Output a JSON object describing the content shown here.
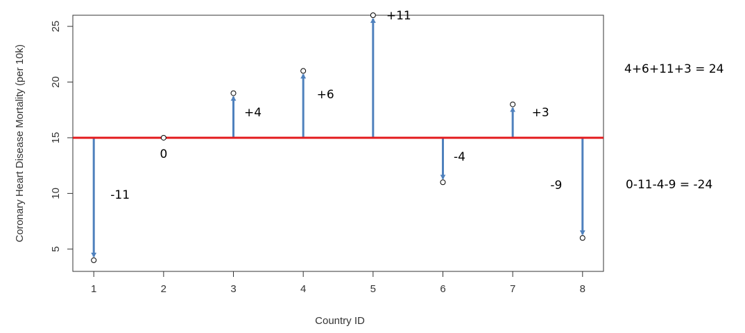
{
  "chart_data": {
    "type": "scatter",
    "xlabel": "Country ID",
    "ylabel": "Coronary Heart Disease Mortality (per 10k)",
    "x": [
      1,
      2,
      3,
      4,
      5,
      6,
      7,
      8
    ],
    "y": [
      4,
      15,
      19,
      21,
      26,
      11,
      18,
      6
    ],
    "baseline": 15,
    "xlim": [
      0.7,
      8.3
    ],
    "ylim": [
      3,
      26
    ],
    "xticks": [
      "1",
      "2",
      "3",
      "4",
      "5",
      "6",
      "7",
      "8"
    ],
    "yticks": [
      "5",
      "10",
      "15",
      "20",
      "25"
    ],
    "deviation_labels": [
      "-11",
      "0",
      "+4",
      "+6",
      "+11",
      "-4",
      "+3",
      "-9"
    ],
    "grid": false,
    "colors": {
      "baseline": "#e31a1c",
      "arrow": "#4f81bd",
      "point": "#000000"
    }
  },
  "notes": {
    "positive_sum": "4+6+11+3 = 24",
    "negative_sum": "0-11-4-9 = -24"
  }
}
